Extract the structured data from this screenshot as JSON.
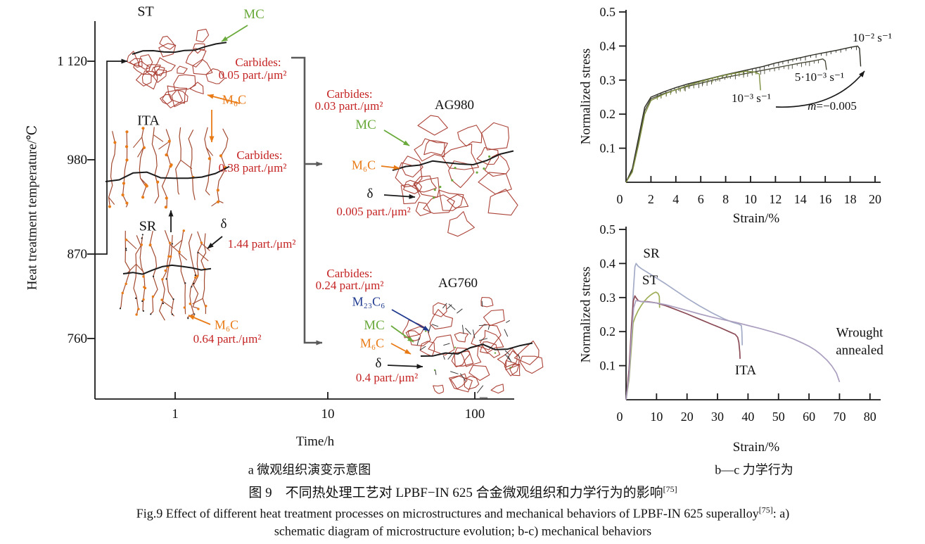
{
  "colors": {
    "red": "#c42323",
    "green": "#6aaa3c",
    "orange": "#e97b17",
    "blue": "#1f3a8f",
    "black": "#1a1a1a",
    "gray_bracket": "#5a5a5a",
    "grain_red": "#a83a2e",
    "grain_brown": "#a24a30",
    "curve_dark1": "#2e2e26",
    "curve_dark2": "#4a4a3a",
    "curve_olive": "#7d8f3f",
    "curve_sr": "#a3abc6",
    "curve_st": "#9eae57",
    "curve_ita": "#8a4a55",
    "curve_wrought": "#ab9fc0"
  },
  "panel_a": {
    "y_axis_label": "Heat treatment temperature/℃",
    "x_axis_label": "Time/h",
    "y_ticks": [
      "1 120",
      "980",
      "870",
      "760"
    ],
    "x_ticks": [
      "1",
      "10",
      "100"
    ],
    "sketches": {
      "st": "ST",
      "ita": "ITA",
      "sr": "SR",
      "ag980": "AG980",
      "ag760": "AG760"
    },
    "annotations": {
      "st_mc": "MC",
      "st_carbides_1": "Carbides:",
      "st_carbides_2": "0.05 part./μm²",
      "st_m6c": "M₆C",
      "ita_carbides_1": "Carbides:",
      "ita_carbides_2": "0.38 part./μm²",
      "sr_delta": "δ",
      "sr_delta_value": "1.44 part./μm²",
      "sr_m6c": "M₆C",
      "sr_m6c_value": "0.64 part./μm²",
      "ag980_carbides_1": "Carbides:",
      "ag980_carbides_2": "0.03 part./μm²",
      "ag980_mc": "MC",
      "ag980_m6c": "M₆C",
      "ag980_delta": "δ",
      "ag980_delta_value": "0.005 part./μm²",
      "ag760_carbides_1": "Carbides:",
      "ag760_carbides_2": "0.24 part./μm²",
      "ag760_m23c6": "M₂₃C₆",
      "ag760_mc": "MC",
      "ag760_m6c": "M₆C",
      "ag760_delta": "δ",
      "ag760_delta_value": "0.4 part./μm²"
    }
  },
  "chart_data": [
    {
      "id": "b",
      "type": "line",
      "title": "",
      "xlabel": "Strain/%",
      "ylabel": "Normalized stress",
      "xlim": [
        0,
        20
      ],
      "ylim": [
        0,
        0.5
      ],
      "xticks": [
        0,
        2,
        4,
        6,
        8,
        10,
        12,
        14,
        16,
        18,
        20
      ],
      "yticks": [
        0.1,
        0.2,
        0.3,
        0.4,
        0.5
      ],
      "grid": false,
      "annotations": {
        "rate_fast": "10⁻² s⁻¹",
        "rate_mid": "5·10⁻³ s⁻¹",
        "rate_slow": "10⁻³ s⁻¹",
        "m_italic": "m",
        "m_rest": "=−0.005"
      },
      "series": [
        {
          "name": "10⁻² s⁻¹",
          "color_key": "curve_dark1",
          "serrated": true,
          "points": [
            [
              0,
              0
            ],
            [
              0.5,
              0.04
            ],
            [
              1,
              0.13
            ],
            [
              1.5,
              0.22
            ],
            [
              2,
              0.25
            ],
            [
              3,
              0.265
            ],
            [
              4,
              0.278
            ],
            [
              5,
              0.289
            ],
            [
              6,
              0.298
            ],
            [
              7,
              0.307
            ],
            [
              8,
              0.316
            ],
            [
              9,
              0.324
            ],
            [
              10,
              0.332
            ],
            [
              11,
              0.34
            ],
            [
              12,
              0.35
            ],
            [
              13,
              0.358
            ],
            [
              14,
              0.366
            ],
            [
              15,
              0.374
            ],
            [
              16,
              0.381
            ],
            [
              17,
              0.388
            ],
            [
              18,
              0.396
            ],
            [
              18.6,
              0.4
            ],
            [
              18.75,
              0.393
            ],
            [
              18.85,
              0.34
            ]
          ]
        },
        {
          "name": "5·10⁻³ s⁻¹",
          "color_key": "curve_dark2",
          "serrated": true,
          "points": [
            [
              0,
              0
            ],
            [
              0.5,
              0.035
            ],
            [
              1,
              0.12
            ],
            [
              1.5,
              0.21
            ],
            [
              2,
              0.245
            ],
            [
              3,
              0.26
            ],
            [
              4,
              0.272
            ],
            [
              5,
              0.282
            ],
            [
              6,
              0.291
            ],
            [
              7,
              0.3
            ],
            [
              8,
              0.308
            ],
            [
              9,
              0.315
            ],
            [
              10,
              0.322
            ],
            [
              11,
              0.329
            ],
            [
              12,
              0.336
            ],
            [
              13,
              0.343
            ],
            [
              14,
              0.35
            ],
            [
              15,
              0.356
            ],
            [
              15.8,
              0.362
            ],
            [
              16,
              0.356
            ],
            [
              16.1,
              0.33
            ]
          ]
        },
        {
          "name": "10⁻³ s⁻¹",
          "color_key": "curve_olive",
          "serrated": true,
          "points": [
            [
              0,
              0
            ],
            [
              0.5,
              0.03
            ],
            [
              1,
              0.11
            ],
            [
              1.5,
              0.2
            ],
            [
              2,
              0.24
            ],
            [
              3,
              0.258
            ],
            [
              4,
              0.272
            ],
            [
              5,
              0.285
            ],
            [
              6,
              0.296
            ],
            [
              7,
              0.306
            ],
            [
              8,
              0.315
            ],
            [
              9,
              0.322
            ],
            [
              9.6,
              0.326
            ],
            [
              10.3,
              0.324
            ],
            [
              10.7,
              0.318
            ],
            [
              10.8,
              0.27
            ]
          ]
        }
      ]
    },
    {
      "id": "c",
      "type": "line",
      "title": "",
      "xlabel": "Strain/%",
      "ylabel": "Normalized stress",
      "xlim": [
        0,
        80
      ],
      "ylim": [
        0,
        0.5
      ],
      "xticks": [
        0,
        10,
        20,
        30,
        40,
        50,
        60,
        70,
        80
      ],
      "yticks": [
        0.1,
        0.2,
        0.3,
        0.4,
        0.5
      ],
      "grid": false,
      "annotations": {
        "sr": "SR",
        "st": "ST",
        "ita": "ITA",
        "wrought": "Wrought annealed"
      },
      "series": [
        {
          "name": "SR",
          "color_key": "curve_sr",
          "points": [
            [
              0,
              0
            ],
            [
              1,
              0.08
            ],
            [
              1.8,
              0.2
            ],
            [
              2.4,
              0.32
            ],
            [
              2.9,
              0.39
            ],
            [
              3.3,
              0.4
            ],
            [
              4,
              0.392
            ],
            [
              5,
              0.385
            ],
            [
              7,
              0.374
            ],
            [
              10,
              0.357
            ],
            [
              13,
              0.34
            ],
            [
              16,
              0.322
            ],
            [
              20,
              0.298
            ],
            [
              24,
              0.276
            ],
            [
              28,
              0.256
            ],
            [
              32,
              0.238
            ],
            [
              35,
              0.227
            ],
            [
              37,
              0.222
            ],
            [
              37.8,
              0.218
            ],
            [
              38,
              0.2
            ],
            [
              38.1,
              0.16
            ]
          ]
        },
        {
          "name": "ST",
          "color_key": "curve_st",
          "points": [
            [
              0,
              0
            ],
            [
              1,
              0.06
            ],
            [
              1.8,
              0.16
            ],
            [
              2.3,
              0.225
            ],
            [
              3,
              0.243
            ],
            [
              4,
              0.262
            ],
            [
              5,
              0.277
            ],
            [
              6,
              0.289
            ],
            [
              7,
              0.299
            ],
            [
              8,
              0.307
            ],
            [
              9,
              0.313
            ],
            [
              9.8,
              0.316
            ],
            [
              10.5,
              0.312
            ],
            [
              10.9,
              0.303
            ],
            [
              11,
              0.27
            ]
          ]
        },
        {
          "name": "ITA",
          "color_key": "curve_ita",
          "points": [
            [
              0,
              0
            ],
            [
              1,
              0.09
            ],
            [
              1.8,
              0.22
            ],
            [
              2.4,
              0.29
            ],
            [
              2.9,
              0.305
            ],
            [
              3.4,
              0.298
            ],
            [
              4,
              0.291
            ],
            [
              5,
              0.288
            ],
            [
              7,
              0.288
            ],
            [
              10,
              0.284
            ],
            [
              13,
              0.276
            ],
            [
              16,
              0.266
            ],
            [
              20,
              0.252
            ],
            [
              24,
              0.237
            ],
            [
              28,
              0.222
            ],
            [
              31,
              0.211
            ],
            [
              34,
              0.199
            ],
            [
              35.8,
              0.192
            ],
            [
              36.6,
              0.183
            ],
            [
              37,
              0.168
            ],
            [
              37.3,
              0.14
            ],
            [
              37.4,
              0.12
            ]
          ]
        },
        {
          "name": "Wrought annealed",
          "color_key": "curve_wrought",
          "points": [
            [
              0,
              0
            ],
            [
              1,
              0.07
            ],
            [
              1.8,
              0.19
            ],
            [
              2.5,
              0.27
            ],
            [
              3.2,
              0.291
            ],
            [
              4,
              0.29
            ],
            [
              5,
              0.288
            ],
            [
              7,
              0.287
            ],
            [
              10,
              0.284
            ],
            [
              13,
              0.279
            ],
            [
              16,
              0.272
            ],
            [
              20,
              0.262
            ],
            [
              24,
              0.252
            ],
            [
              28,
              0.243
            ],
            [
              32,
              0.235
            ],
            [
              36,
              0.227
            ],
            [
              40,
              0.218
            ],
            [
              44,
              0.209
            ],
            [
              48,
              0.199
            ],
            [
              52,
              0.188
            ],
            [
              55,
              0.178
            ],
            [
              58,
              0.166
            ],
            [
              60,
              0.157
            ],
            [
              62,
              0.146
            ],
            [
              64,
              0.132
            ],
            [
              66,
              0.115
            ],
            [
              67.5,
              0.099
            ],
            [
              69,
              0.078
            ],
            [
              70,
              0.052
            ]
          ]
        }
      ]
    }
  ],
  "captions": {
    "panel_a": "a 微观组织演变示意图",
    "panel_bc": "b—c 力学行为",
    "zh": "图 9　不同热处理工艺对 LPBF−IN 625 合金微观组织和力学行为的影响",
    "ref": "[75]",
    "en_1": "Fig.9 Effect of different heat treatment processes on microstructures and mechanical behaviors of LPBF-IN 625 superalloy",
    "en_1_after": ": a)",
    "en_2": "schematic diagram of microstructure evolution; b-c) mechanical behaviors"
  }
}
